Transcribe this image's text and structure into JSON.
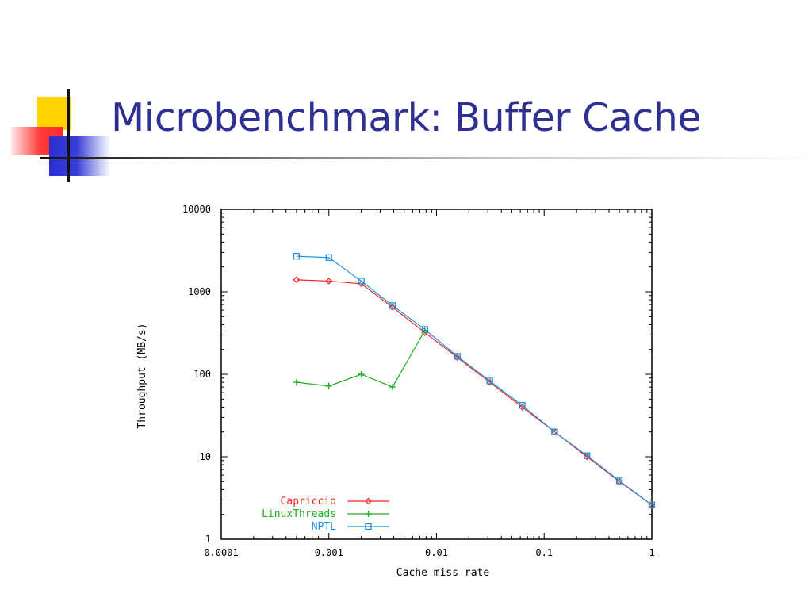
{
  "slide": {
    "title": "Microbenchmark: Buffer Cache"
  },
  "chart_data": {
    "type": "line",
    "xlabel": "Cache miss rate",
    "ylabel": "Throughput (MB/s)",
    "xscale": "log",
    "yscale": "log",
    "xlim": [
      0.0001,
      1
    ],
    "ylim": [
      1,
      10000
    ],
    "xticks": [
      "0.0001",
      "0.001",
      "0.01",
      "0.1",
      "1"
    ],
    "yticks": [
      "1",
      "10",
      "100",
      "1000",
      "10000"
    ],
    "legend_position": "bottom-left",
    "series": [
      {
        "name": "Capriccio",
        "color": "#ff2020",
        "marker": "diamond",
        "x": [
          0.0005,
          0.001,
          0.002,
          0.0039,
          0.0078,
          0.0156,
          0.03125,
          0.0625,
          0.125,
          0.25,
          0.5,
          1
        ],
        "y": [
          1400,
          1350,
          1250,
          650,
          320,
          160,
          80,
          40,
          20,
          10,
          5,
          2.6
        ]
      },
      {
        "name": "LinuxThreads",
        "color": "#20b020",
        "marker": "plus",
        "x": [
          0.0005,
          0.001,
          0.002,
          0.0039,
          0.0078
        ],
        "y": [
          80,
          72,
          100,
          70,
          340
        ]
      },
      {
        "name": "NPTL",
        "color": "#1e90e0",
        "marker": "square",
        "x": [
          0.0005,
          0.001,
          0.002,
          0.0039,
          0.0078,
          0.0156,
          0.03125,
          0.0625,
          0.125,
          0.25,
          0.5,
          1
        ],
        "y": [
          2700,
          2600,
          1350,
          680,
          350,
          165,
          83,
          42,
          20,
          10.3,
          5.1,
          2.6
        ]
      }
    ]
  }
}
